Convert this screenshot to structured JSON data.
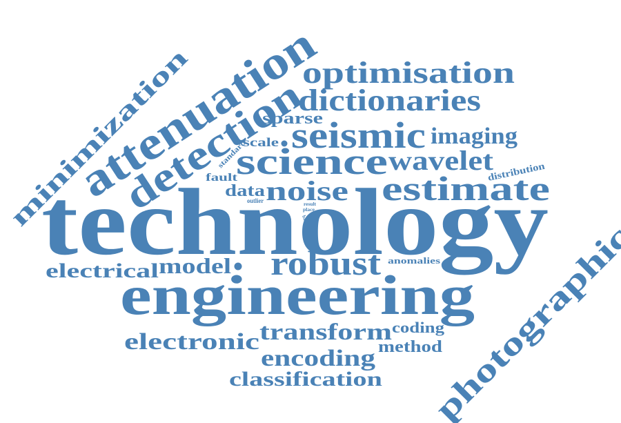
{
  "theme": {
    "word_color": "#4a82b6",
    "background": "#ffffff"
  },
  "words": {
    "technology": "technology",
    "engineering": "engineering",
    "attenuation": "attenuation",
    "detection": "detection",
    "photographic": "photographic",
    "minimization": "minimization",
    "optimisation": "optimisation",
    "dictionaries": "dictionaries",
    "seismic": "seismic",
    "science": "science",
    "estimate": "estimate",
    "robust": "robust",
    "noise": "noise",
    "wavelet": "wavelet",
    "imaging": "imaging",
    "transform": "transform",
    "electronic": "electronic",
    "encoding": "encoding",
    "classification": "classification",
    "model": "model",
    "electrical": "electrical",
    "method": "method",
    "coding": "coding",
    "sparse": "sparse",
    "data": "data",
    "scale": "scale",
    "fault": "fault",
    "distribution": "distribution",
    "anomalies": "anomalies",
    "standard": "standard",
    "outlier": "outlier",
    "result": "result",
    "place": "place",
    "basis": "basis"
  }
}
